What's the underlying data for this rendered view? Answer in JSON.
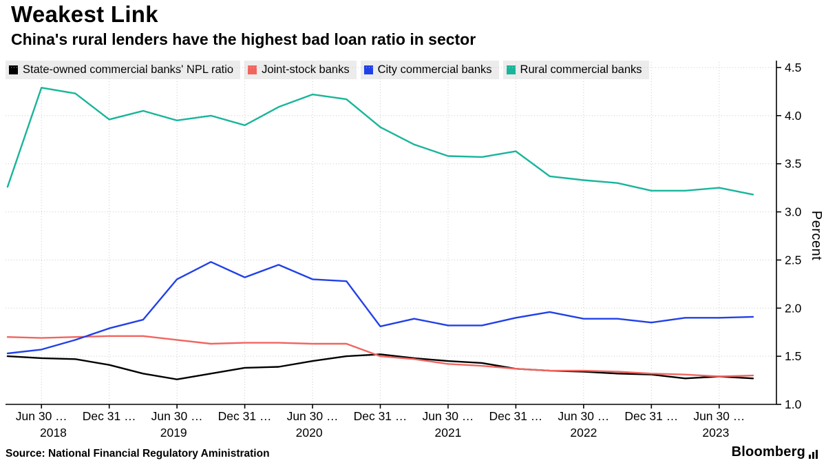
{
  "header": {
    "title": "Weakest Link",
    "subtitle": "China's rural lenders have the highest bad loan ratio in sector"
  },
  "chart_data": {
    "type": "line",
    "title": "Weakest Link",
    "subtitle": "China's rural lenders have the highest bad loan ratio in sector",
    "ylabel": "Percent",
    "ylim": [
      1.0,
      4.5
    ],
    "yticks": [
      1.0,
      1.5,
      2.0,
      2.5,
      3.0,
      3.5,
      4.0,
      4.5
    ],
    "grid": "dotted",
    "legend_position": "top",
    "x": [
      "2018-03-31",
      "2018-06-30",
      "2018-09-30",
      "2018-12-31",
      "2019-03-31",
      "2019-06-30",
      "2019-09-30",
      "2019-12-31",
      "2020-03-31",
      "2020-06-30",
      "2020-09-30",
      "2020-12-31",
      "2021-03-31",
      "2021-06-30",
      "2021-09-30",
      "2021-12-31",
      "2022-03-31",
      "2022-06-30",
      "2022-09-30",
      "2022-12-31",
      "2023-03-31",
      "2023-06-30",
      "2023-09-30"
    ],
    "x_ticks": [
      {
        "i": 1,
        "label": "Jun 30 …"
      },
      {
        "i": 3,
        "label": "Dec 31 …"
      },
      {
        "i": 5,
        "label": "Jun 30 …"
      },
      {
        "i": 7,
        "label": "Dec 31 …"
      },
      {
        "i": 9,
        "label": "Jun 30 …"
      },
      {
        "i": 11,
        "label": "Dec 31 …"
      },
      {
        "i": 13,
        "label": "Jun 30 …"
      },
      {
        "i": 15,
        "label": "Dec 31 …"
      },
      {
        "i": 17,
        "label": "Jun 30 …"
      },
      {
        "i": 19,
        "label": "Dec 31 …"
      },
      {
        "i": 21,
        "label": "Jun 30 …"
      }
    ],
    "year_ticks": [
      {
        "i": 1.35,
        "label": "2018"
      },
      {
        "i": 4.9,
        "label": "2019"
      },
      {
        "i": 8.9,
        "label": "2020"
      },
      {
        "i": 13,
        "label": "2021"
      },
      {
        "i": 17,
        "label": "2022"
      },
      {
        "i": 20.9,
        "label": "2023"
      }
    ],
    "series": [
      {
        "id": "state-owned",
        "name": "State-owned commercial banks' NPL ratio",
        "color": "#000000",
        "values": [
          1.5,
          1.48,
          1.47,
          1.41,
          1.32,
          1.26,
          1.32,
          1.38,
          1.39,
          1.45,
          1.5,
          1.52,
          1.48,
          1.45,
          1.43,
          1.37,
          1.35,
          1.34,
          1.32,
          1.31,
          1.27,
          1.29,
          1.27
        ]
      },
      {
        "id": "joint-stock",
        "name": "Joint-stock banks",
        "color": "#f0655e",
        "values": [
          1.7,
          1.69,
          1.7,
          1.71,
          1.71,
          1.67,
          1.63,
          1.64,
          1.64,
          1.63,
          1.63,
          1.5,
          1.47,
          1.42,
          1.4,
          1.37,
          1.35,
          1.35,
          1.34,
          1.32,
          1.31,
          1.29,
          1.3
        ]
      },
      {
        "id": "city",
        "name": "City commercial banks",
        "color": "#2140e8",
        "values": [
          1.53,
          1.57,
          1.67,
          1.79,
          1.88,
          2.3,
          2.48,
          2.32,
          2.45,
          2.3,
          2.28,
          1.81,
          1.89,
          1.82,
          1.82,
          1.9,
          1.96,
          1.89,
          1.89,
          1.85,
          1.9,
          1.9,
          1.91
        ]
      },
      {
        "id": "rural",
        "name": "Rural commercial banks",
        "color": "#18b59a",
        "values": [
          3.26,
          4.29,
          4.23,
          3.96,
          4.05,
          3.95,
          4.0,
          3.9,
          4.09,
          4.22,
          4.17,
          3.88,
          3.7,
          3.58,
          3.57,
          3.63,
          3.37,
          3.33,
          3.3,
          3.22,
          3.22,
          3.25,
          3.18
        ]
      }
    ]
  },
  "footer": {
    "source": "Source: National Financial Regulatory Aministration",
    "brand": "Bloomberg"
  }
}
